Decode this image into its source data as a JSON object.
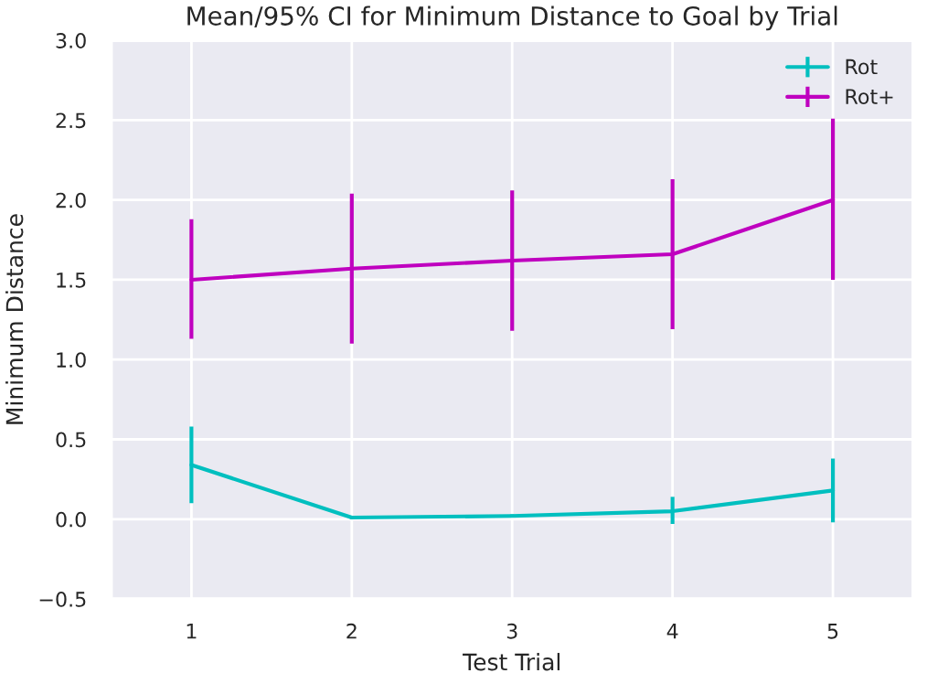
{
  "chart_data": {
    "type": "line",
    "title": "Mean/95% CI for Minimum Distance to Goal by Trial",
    "xlabel": "Test Trial",
    "ylabel": "Minimum Distance",
    "x": [
      1,
      2,
      3,
      4,
      5
    ],
    "series": [
      {
        "name": "Rot",
        "color": "#00bfbf",
        "values": [
          0.34,
          0.01,
          0.02,
          0.05,
          0.18
        ],
        "errors": [
          [
            0.1,
            0.58
          ],
          [
            0.0,
            0.02
          ],
          [
            0.01,
            0.03
          ],
          [
            -0.03,
            0.14
          ],
          [
            -0.02,
            0.38
          ]
        ]
      },
      {
        "name": "Rot+",
        "color": "#bf00bf",
        "values": [
          1.5,
          1.57,
          1.62,
          1.66,
          2.0
        ],
        "errors": [
          [
            1.13,
            1.88
          ],
          [
            1.1,
            2.04
          ],
          [
            1.18,
            2.06
          ],
          [
            1.19,
            2.13
          ],
          [
            1.5,
            2.51
          ]
        ]
      }
    ],
    "xlim": [
      0.5,
      5.5
    ],
    "xticks": [
      1,
      2,
      3,
      4,
      5
    ],
    "ylim": [
      -0.5,
      3.0
    ],
    "yticks": [
      {
        "value": -0.5,
        "label": "−0.5"
      },
      {
        "value": 0,
        "label": "0.0"
      },
      {
        "value": 0.5,
        "label": "0.5"
      },
      {
        "value": 1.0,
        "label": "1.0"
      },
      {
        "value": 1.5,
        "label": "1.5"
      },
      {
        "value": 2.0,
        "label": "2.0"
      },
      {
        "value": 2.5,
        "label": "2.5"
      },
      {
        "value": 3.0,
        "label": "3.0"
      }
    ],
    "grid": true,
    "legend": "top right",
    "line_style": "solid",
    "marker": "none"
  }
}
